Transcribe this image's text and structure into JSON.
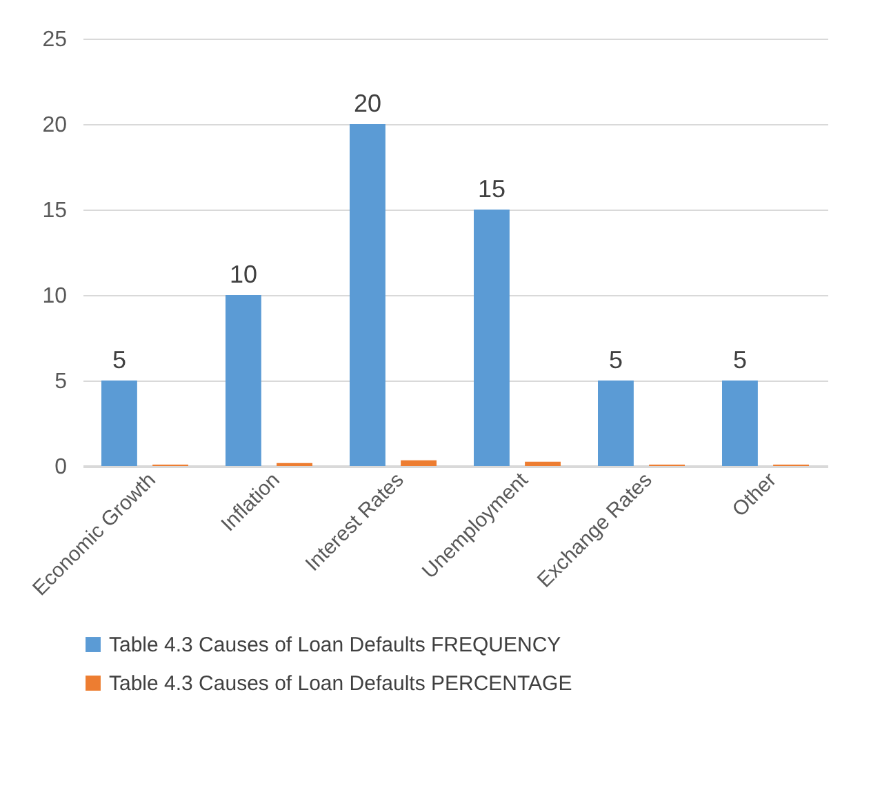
{
  "chart_data": {
    "type": "bar",
    "categories": [
      "Economic Growth",
      "Inflation",
      "Interest Rates",
      "Unemployment",
      "Exchange Rates",
      "Other"
    ],
    "series": [
      {
        "name": "Table 4.3 Causes of Loan Defaults FREQUENCY",
        "color": "#5b9bd5",
        "values": [
          5,
          10,
          20,
          15,
          5,
          5
        ],
        "value_labels": [
          "5",
          "10",
          "20",
          "15",
          "5",
          "5"
        ]
      },
      {
        "name": "Table 4.3 Causes of Loan Defaults PERCENTAGE",
        "color": "#ed7d31",
        "values": [
          0.08,
          0.17,
          0.33,
          0.25,
          0.08,
          0.08
        ]
      }
    ],
    "ylim": [
      0,
      25
    ],
    "yticks": [
      0,
      5,
      10,
      15,
      20,
      25
    ],
    "grid": "y",
    "legend": "bottom"
  }
}
